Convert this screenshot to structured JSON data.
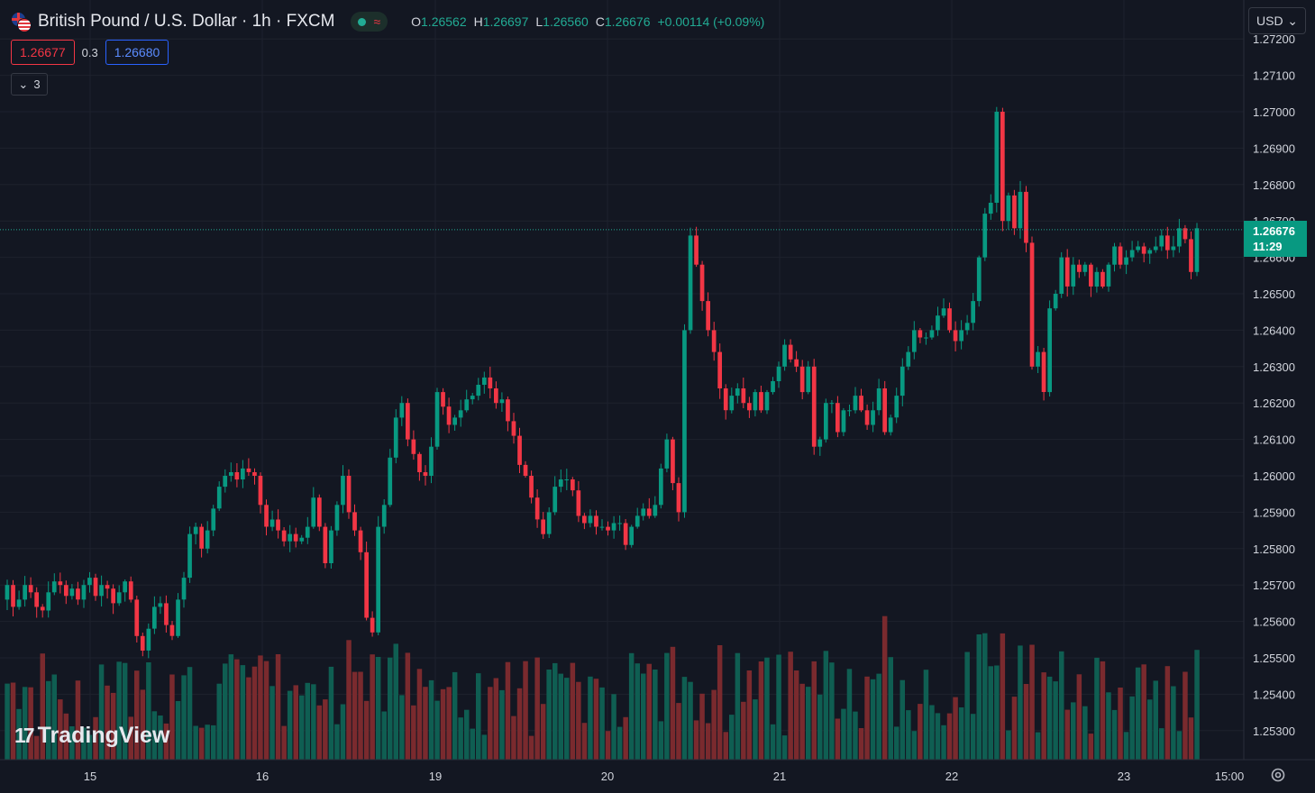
{
  "header": {
    "title": "British Pound / U.S. Dollar · 1h · FXCM",
    "ohlc": [
      {
        "key": "O",
        "value": "1.26562"
      },
      {
        "key": "H",
        "value": "1.26697"
      },
      {
        "key": "L",
        "value": "1.26560"
      },
      {
        "key": "C",
        "value": "1.26676"
      }
    ],
    "change": "+0.00114 (+0.09%)",
    "status_icon": "market-open-dot",
    "delay_icon": "wave-icon"
  },
  "prices": {
    "sell": "1.26677",
    "spread": "0.3",
    "buy": "1.26680"
  },
  "indicators_toggle": {
    "count": "3"
  },
  "currency": {
    "label": "USD"
  },
  "last_price": {
    "value": "1.26676",
    "countdown": "11:29"
  },
  "logo": {
    "text": "TradingView"
  },
  "colors": {
    "up": "#089981",
    "down": "#f23645",
    "background": "#131722",
    "grid": "#1e222d"
  },
  "chart_data": {
    "type": "candlestick",
    "y_ticks": [
      "1.27200",
      "1.27100",
      "1.27000",
      "1.26900",
      "1.26800",
      "1.26700",
      "1.26600",
      "1.26500",
      "1.26400",
      "1.26300",
      "1.26200",
      "1.26100",
      "1.26000",
      "1.25900",
      "1.25800",
      "1.25700",
      "1.25600",
      "1.25500",
      "1.25400",
      "1.25300"
    ],
    "x_ticks": [
      "15",
      "16",
      "19",
      "20",
      "21",
      "22",
      "23",
      "15:00"
    ],
    "last_price": 1.26676,
    "ohlc": []
  }
}
